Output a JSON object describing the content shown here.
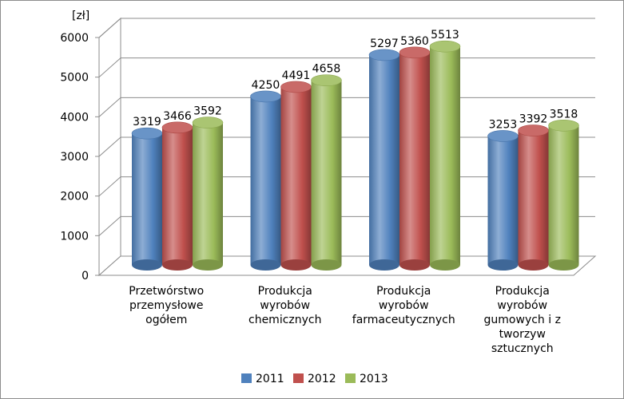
{
  "chart_data": {
    "type": "bar",
    "style": "3d-cylinder",
    "ylabel": "[zł]",
    "ylim": [
      0,
      6000
    ],
    "yticks": [
      0,
      1000,
      2000,
      3000,
      4000,
      5000,
      6000
    ],
    "categories": [
      [
        "Przetwórstwo",
        "przemysłowe",
        "ogółem"
      ],
      [
        "Produkcja",
        "wyrobów",
        "chemicznych"
      ],
      [
        "Produkcja",
        "wyrobów",
        "farmaceutycznych"
      ],
      [
        "Produkcja",
        "wyrobów",
        "gumowych i z",
        "tworzyw",
        "sztucznych"
      ]
    ],
    "series": [
      {
        "name": "2011",
        "values": [
          3319,
          4250,
          5297,
          3253
        ],
        "color": "#4f81bd"
      },
      {
        "name": "2012",
        "values": [
          3466,
          4491,
          5360,
          3392
        ],
        "color": "#c0504d"
      },
      {
        "name": "2013",
        "values": [
          3592,
          4658,
          5513,
          3518
        ],
        "color": "#9bbb59"
      }
    ],
    "legend_position": "bottom",
    "grid": true
  }
}
